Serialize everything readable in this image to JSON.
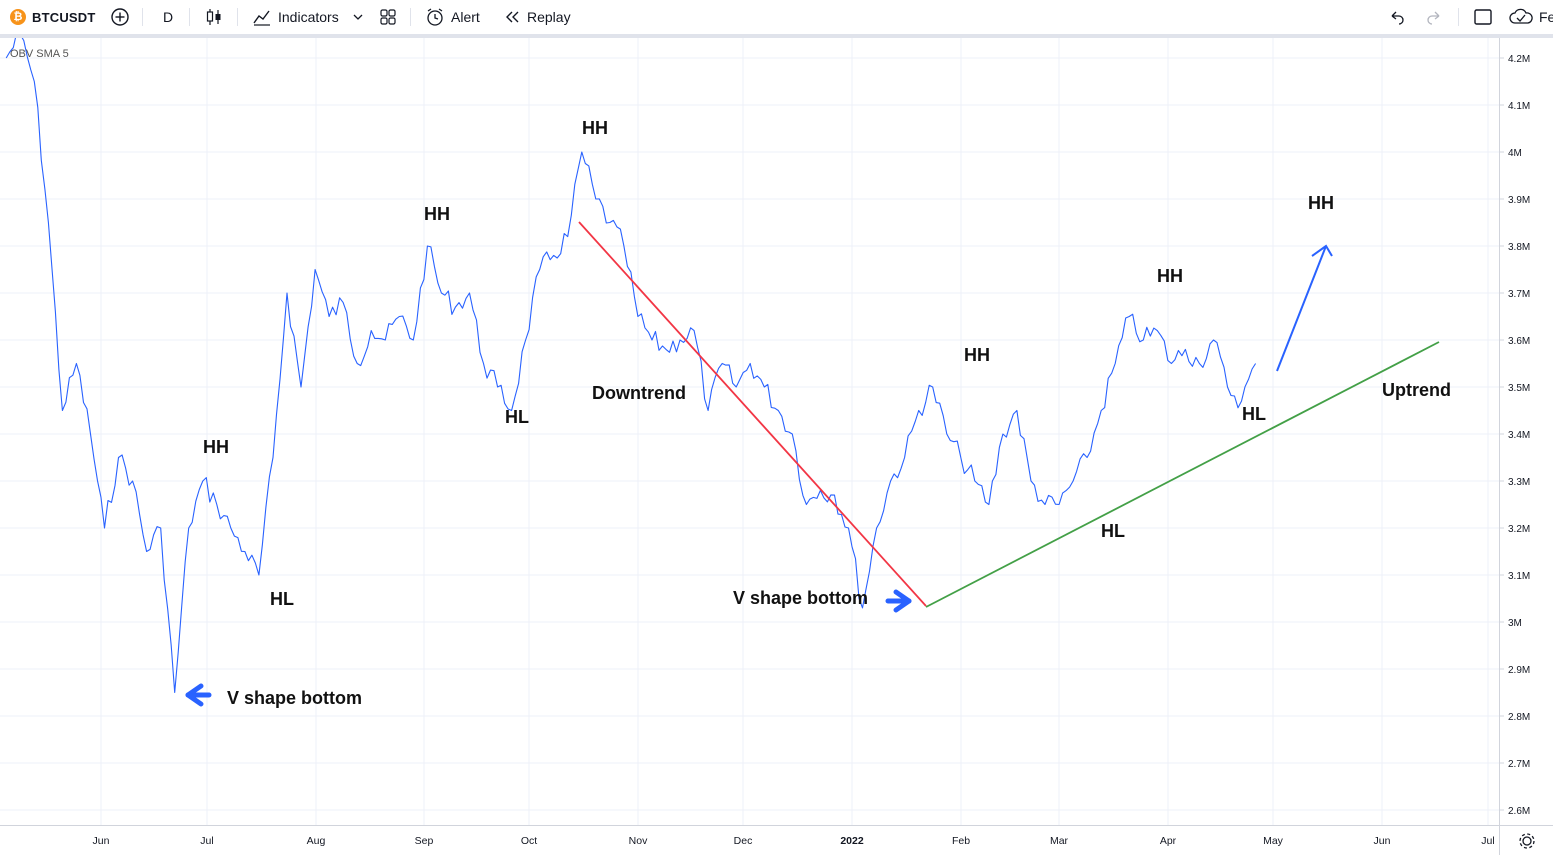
{
  "toolbar": {
    "symbol": "BTCUSDT",
    "btc_glyph": "₿",
    "interval": "D",
    "indicators_label": "Indicators",
    "alert_label": "Alert",
    "replay_label": "Replay",
    "right_truncated_label": "Fe",
    "icons": [
      "bitcoin-logo",
      "add-symbol",
      "candle-style",
      "indicators",
      "layouts",
      "alert",
      "replay",
      "undo",
      "redo",
      "fullscreen",
      "publish"
    ]
  },
  "indicator_label": "OBV SMA 5",
  "annotations": {
    "hh1": "HH",
    "hl1": "HL",
    "hh2": "HH",
    "hl2": "HL",
    "hh3": "HH",
    "downtrend": "Downtrend",
    "v_shape_1": "V shape bottom",
    "v_shape_2": "V shape bottom",
    "hh4": "HH",
    "hl3": "HL",
    "hh5": "HH",
    "hl4": "HL",
    "hh6": "HH",
    "uptrend": "Uptrend"
  },
  "colors": {
    "series": "#2962ff",
    "downtrend_line": "#f23645",
    "uptrend_line": "#43a047",
    "arrow": "#2962ff"
  },
  "chart_data": {
    "type": "line",
    "title": "",
    "series": [
      {
        "name": "OBV SMA 5",
        "x": [
          "2021-05-05",
          "2021-05-09",
          "2021-05-13",
          "2021-05-17",
          "2021-05-21",
          "2021-05-25",
          "2021-05-29",
          "2021-06-02",
          "2021-06-06",
          "2021-06-10",
          "2021-06-14",
          "2021-06-18",
          "2021-06-22",
          "2021-06-26",
          "2021-06-30",
          "2021-07-04",
          "2021-07-08",
          "2021-07-12",
          "2021-07-16",
          "2021-07-20",
          "2021-07-24",
          "2021-07-28",
          "2021-08-01",
          "2021-08-05",
          "2021-08-09",
          "2021-08-13",
          "2021-08-17",
          "2021-08-21",
          "2021-08-25",
          "2021-08-29",
          "2021-09-02",
          "2021-09-06",
          "2021-09-10",
          "2021-09-14",
          "2021-09-18",
          "2021-09-22",
          "2021-09-26",
          "2021-09-30",
          "2021-10-04",
          "2021-10-08",
          "2021-10-12",
          "2021-10-16",
          "2021-10-20",
          "2021-10-24",
          "2021-10-28",
          "2021-11-01",
          "2021-11-05",
          "2021-11-09",
          "2021-11-13",
          "2021-11-17",
          "2021-11-21",
          "2021-11-25",
          "2021-11-29",
          "2021-12-03",
          "2021-12-07",
          "2021-12-11",
          "2021-12-15",
          "2021-12-19",
          "2021-12-23",
          "2021-12-27",
          "2021-12-31",
          "2022-01-04",
          "2022-01-08",
          "2022-01-12",
          "2022-01-16",
          "2022-01-20",
          "2022-01-24",
          "2022-01-28",
          "2022-02-01",
          "2022-02-05",
          "2022-02-09",
          "2022-02-13",
          "2022-02-17",
          "2022-02-21",
          "2022-02-25",
          "2022-03-01",
          "2022-03-05",
          "2022-03-09",
          "2022-03-13",
          "2022-03-17",
          "2022-03-21",
          "2022-03-25",
          "2022-03-29",
          "2022-04-02",
          "2022-04-06",
          "2022-04-10",
          "2022-04-14",
          "2022-04-18",
          "2022-04-22",
          "2022-04-26"
        ],
        "values": [
          4.2,
          4.25,
          4.15,
          3.85,
          3.45,
          3.55,
          3.4,
          3.2,
          3.35,
          3.3,
          3.15,
          3.2,
          2.85,
          3.2,
          3.3,
          3.25,
          3.2,
          3.15,
          3.1,
          3.35,
          3.7,
          3.5,
          3.75,
          3.65,
          3.68,
          3.55,
          3.62,
          3.6,
          3.65,
          3.6,
          3.8,
          3.7,
          3.67,
          3.7,
          3.55,
          3.5,
          3.45,
          3.6,
          3.75,
          3.78,
          3.82,
          4.0,
          3.9,
          3.85,
          3.8,
          3.65,
          3.6,
          3.58,
          3.6,
          3.62,
          3.45,
          3.55,
          3.5,
          3.55,
          3.5,
          3.45,
          3.4,
          3.25,
          3.28,
          3.27,
          3.2,
          3.03,
          3.2,
          3.3,
          3.35,
          3.45,
          3.5,
          3.4,
          3.35,
          3.3,
          3.25,
          3.4,
          3.45,
          3.3,
          3.25,
          3.25,
          3.3,
          3.35,
          3.45,
          3.55,
          3.65,
          3.6,
          3.62,
          3.55,
          3.58,
          3.55,
          3.6,
          3.5,
          3.47,
          3.55
        ]
      }
    ],
    "x_ticks": [
      "Jun",
      "Jul",
      "Aug",
      "Sep",
      "Oct",
      "Nov",
      "Dec",
      "2022",
      "Feb",
      "Mar",
      "Apr",
      "May",
      "Jun",
      "Jul"
    ],
    "y_ticks": [
      "4.2M",
      "4.1M",
      "4M",
      "3.9M",
      "3.8M",
      "3.7M",
      "3.6M",
      "3.5M",
      "3.4M",
      "3.3M",
      "3.2M",
      "3.1M",
      "3M",
      "2.9M",
      "2.8M",
      "2.7M",
      "2.6M"
    ],
    "ylim": [
      2.55,
      4.25
    ],
    "y_unit": "M",
    "grid": true
  }
}
